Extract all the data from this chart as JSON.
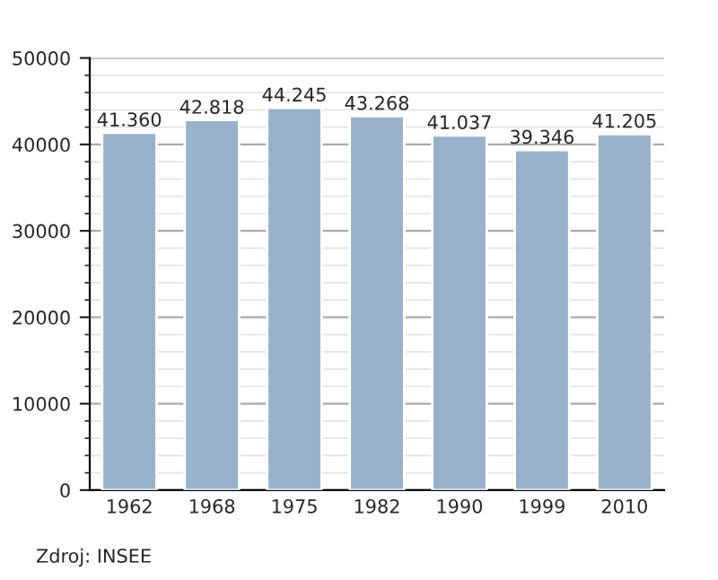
{
  "chart_data": {
    "type": "bar",
    "categories": [
      "1962",
      "1968",
      "1975",
      "1982",
      "1990",
      "1999",
      "2010"
    ],
    "values": [
      41360,
      42818,
      44245,
      43268,
      41037,
      39346,
      41205
    ],
    "value_labels": [
      "41.360",
      "42.818",
      "44.245",
      "43.268",
      "41.037",
      "39.346",
      "41.205"
    ],
    "color": "#97b1cb",
    "ylim": [
      0,
      50000
    ],
    "yticks": [
      0,
      10000,
      20000,
      30000,
      40000,
      50000
    ],
    "grid": "y",
    "annotations": [
      "Zdroj: INSEE"
    ]
  }
}
